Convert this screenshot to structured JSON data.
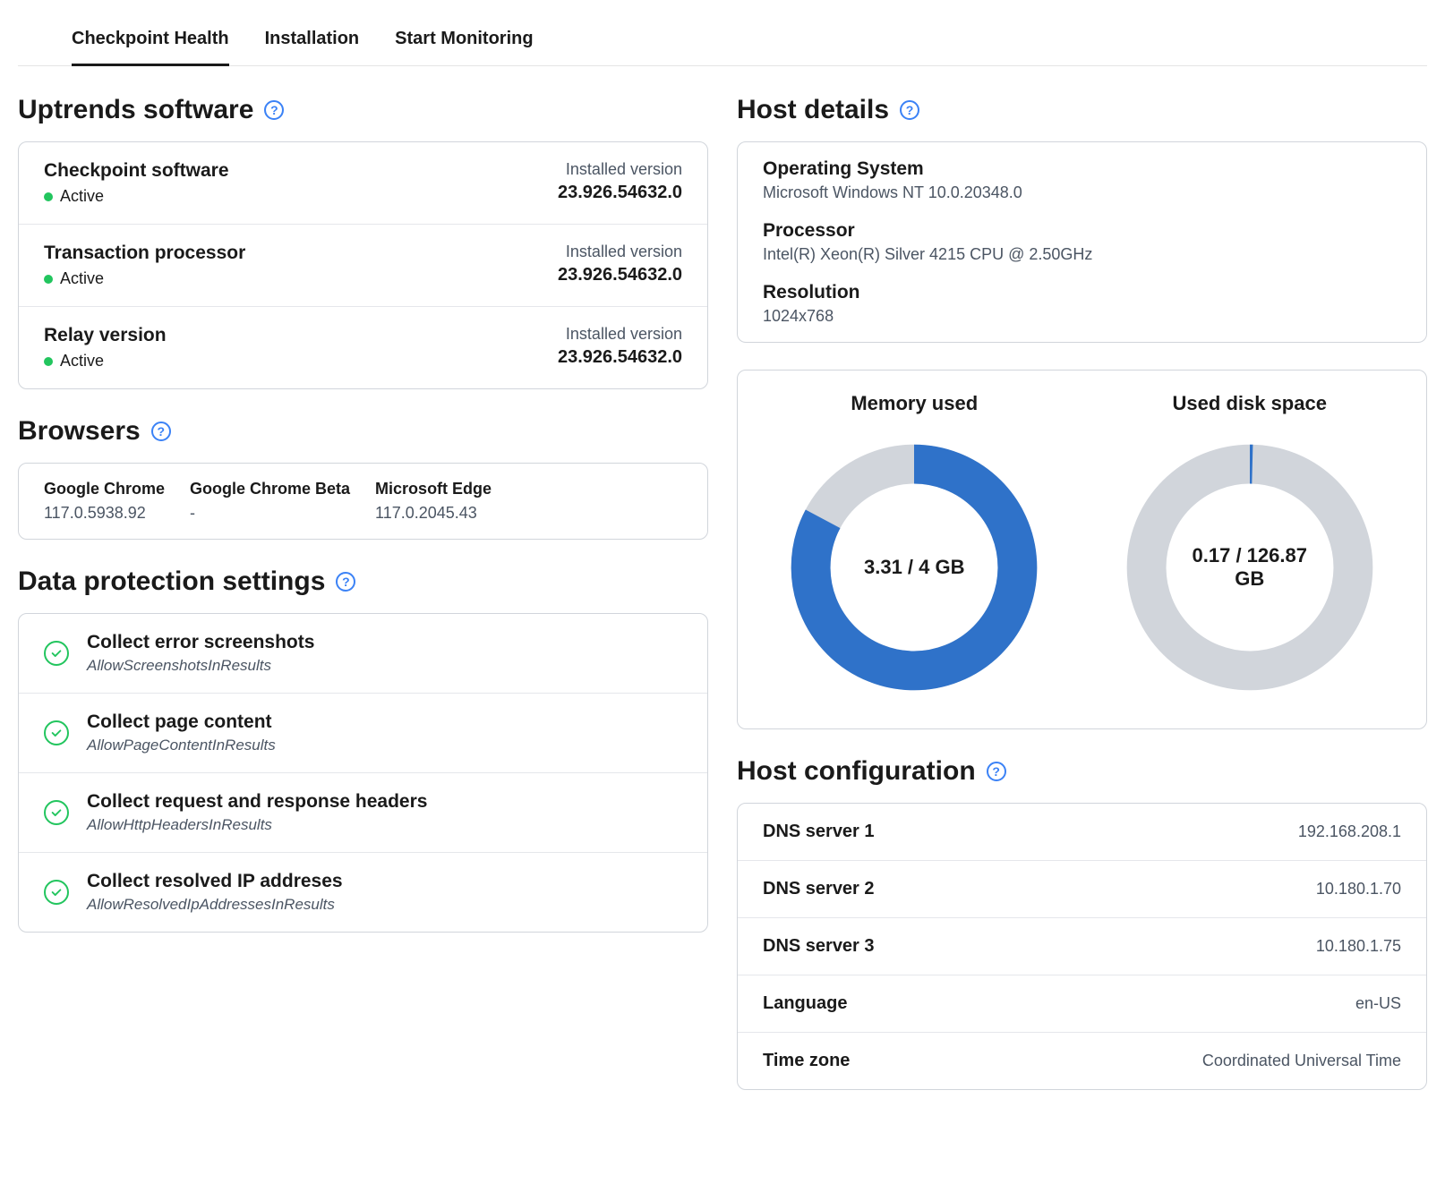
{
  "tabs": [
    {
      "label": "Checkpoint Health",
      "active": true
    },
    {
      "label": "Installation",
      "active": false
    },
    {
      "label": "Start Monitoring",
      "active": false
    }
  ],
  "colors": {
    "accent_blue": "#2f72c9",
    "ring_bg": "#d1d5db",
    "status_green": "#22c55e",
    "help_blue": "#3b82f6",
    "text": "#1a1a1a",
    "text_muted": "#4b5563",
    "border": "#d1d5db",
    "divider": "#e5e7eb",
    "background": "#ffffff"
  },
  "left": {
    "software": {
      "title": "Uptrends software",
      "items": [
        {
          "name": "Checkpoint software",
          "status": "Active",
          "version_label": "Installed version",
          "version": "23.926.54632.0"
        },
        {
          "name": "Transaction processor",
          "status": "Active",
          "version_label": "Installed version",
          "version": "23.926.54632.0"
        },
        {
          "name": "Relay version",
          "status": "Active",
          "version_label": "Installed version",
          "version": "23.926.54632.0"
        }
      ]
    },
    "browsers": {
      "title": "Browsers",
      "items": [
        {
          "name": "Google Chrome",
          "version": "117.0.5938.92"
        },
        {
          "name": "Google Chrome Beta",
          "version": "-"
        },
        {
          "name": "Microsoft Edge",
          "version": "117.0.2045.43"
        }
      ]
    },
    "data_protection": {
      "title": "Data protection settings",
      "items": [
        {
          "title": "Collect error screenshots",
          "key": "AllowScreenshotsInResults"
        },
        {
          "title": "Collect page content",
          "key": "AllowPageContentInResults"
        },
        {
          "title": "Collect request and response headers",
          "key": "AllowHttpHeadersInResults"
        },
        {
          "title": "Collect resolved IP addreses",
          "key": "AllowResolvedIpAddressesInResults"
        }
      ]
    }
  },
  "right": {
    "host_details": {
      "title": "Host details",
      "items": [
        {
          "label": "Operating System",
          "value": "Microsoft Windows NT 10.0.20348.0"
        },
        {
          "label": "Processor",
          "value": "Intel(R) Xeon(R) Silver 4215 CPU @ 2.50GHz"
        },
        {
          "label": "Resolution",
          "value": "1024x768"
        }
      ]
    },
    "donuts": [
      {
        "title": "Memory used",
        "used": 3.31,
        "total": 4,
        "unit": "GB",
        "center_text": "3.31 / 4 GB",
        "fraction": 0.8275,
        "fill_color": "#2f72c9",
        "bg_color": "#d1d5db",
        "stroke_width": 38
      },
      {
        "title": "Used disk space",
        "used": 0.17,
        "total": 126.87,
        "unit": "GB",
        "center_text": "0.17 / 126.87 GB",
        "fraction": 0.00134,
        "fill_color": "#2f72c9",
        "bg_color": "#d1d5db",
        "stroke_width": 38
      }
    ],
    "host_config": {
      "title": "Host configuration",
      "items": [
        {
          "label": "DNS server 1",
          "value": "192.168.208.1"
        },
        {
          "label": "DNS server 2",
          "value": "10.180.1.70"
        },
        {
          "label": "DNS server 3",
          "value": "10.180.1.75"
        },
        {
          "label": "Language",
          "value": "en-US"
        },
        {
          "label": "Time zone",
          "value": "Coordinated Universal Time"
        }
      ]
    }
  }
}
